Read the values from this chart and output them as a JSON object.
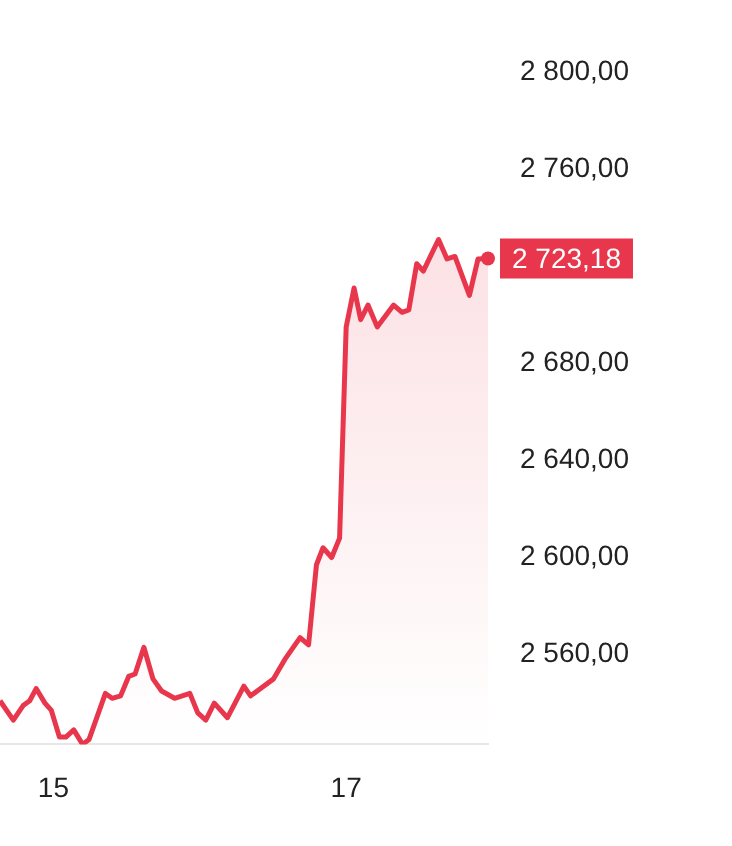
{
  "chart_data": {
    "type": "area",
    "x": [
      14.635,
      14.726,
      14.793,
      14.838,
      14.882,
      14.942,
      14.986,
      15.041,
      15.085,
      15.139,
      15.199,
      15.243,
      15.355,
      15.401,
      15.459,
      15.514,
      15.558,
      15.618,
      15.68,
      15.739,
      15.828,
      15.932,
      15.986,
      16.041,
      16.099,
      16.189,
      16.301,
      16.347,
      16.436,
      16.504,
      16.581,
      16.685,
      16.743,
      16.797,
      16.842,
      16.901,
      16.955,
      17.0,
      17.054,
      17.099,
      17.149,
      17.212,
      17.324,
      17.382,
      17.428,
      17.482,
      17.527,
      17.631,
      17.689,
      17.743,
      17.842,
      17.901,
      17.969
    ],
    "series": [
      {
        "color": "#e8374c",
        "values": [
          2541,
          2533,
          2539,
          2541,
          2546,
          2540,
          2537,
          2526,
          2526,
          2529,
          2523,
          2525,
          2544,
          2542,
          2543,
          2551,
          2552,
          2563,
          2550,
          2545,
          2542,
          2544,
          2536,
          2533,
          2540,
          2534,
          2547,
          2543,
          2547,
          2550,
          2558,
          2567,
          2564,
          2597,
          2604,
          2600,
          2608,
          2695,
          2711,
          2698,
          2704,
          2695,
          2704,
          2701,
          2702,
          2721,
          2718,
          2731,
          2723,
          2724,
          2708,
          2723,
          2723.18
        ],
        "value_labels": [
          null,
          null,
          null,
          null,
          null,
          null,
          null,
          null,
          null,
          null,
          null,
          null,
          null,
          null,
          null,
          null,
          null,
          null,
          null,
          null,
          null,
          null,
          null,
          null,
          null,
          null,
          null,
          null,
          null,
          null,
          null,
          null,
          null,
          null,
          null,
          null,
          null,
          null,
          null,
          null,
          null,
          null,
          null,
          null,
          null,
          null,
          null,
          null,
          null,
          null,
          null,
          null,
          "2 723,18"
        ]
      }
    ],
    "xlim": [
      14.635,
      17.969
    ],
    "xticks": [
      15,
      17
    ],
    "ylim": [
      2523,
      2800
    ],
    "yticks": [
      {
        "value": 2560,
        "label": "2 560,00"
      },
      {
        "value": 2600,
        "label": "2 600,00"
      },
      {
        "value": 2640,
        "label": "2 640,00"
      },
      {
        "value": 2680,
        "label": "2 680,00"
      },
      {
        "value": 2760,
        "label": "2 760,00"
      },
      {
        "value": 2800,
        "label": "2 800,00"
      }
    ],
    "grid": false,
    "legend": false,
    "marker": "none",
    "line_style": "solid"
  }
}
